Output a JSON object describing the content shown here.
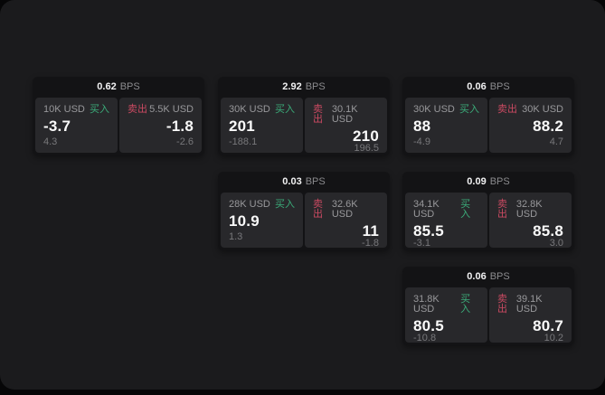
{
  "labels": {
    "bps": "BPS",
    "buy": "买入",
    "sell": "卖出"
  },
  "colors": {
    "buy": "#3bab79",
    "sell": "#cb4a62",
    "panel_bg": "#1b1b1d",
    "card_bg": "#131315",
    "cell_bg": "#28282b"
  },
  "cards": [
    {
      "bps": "0.62",
      "buy": {
        "amount": "10K USD",
        "value": "-3.7",
        "sub": "4.3"
      },
      "sell": {
        "amount": "5.5K USD",
        "value": "-1.8",
        "sub": "-2.6"
      }
    },
    {
      "bps": "2.92",
      "buy": {
        "amount": "30K USD",
        "value": "201",
        "sub": "-188.1"
      },
      "sell": {
        "amount": "30.1K USD",
        "value": "210",
        "sub": "196.5"
      }
    },
    {
      "bps": "0.06",
      "buy": {
        "amount": "30K USD",
        "value": "88",
        "sub": "-4.9"
      },
      "sell": {
        "amount": "30K USD",
        "value": "88.2",
        "sub": "4.7"
      }
    },
    {
      "bps": "0.03",
      "buy": {
        "amount": "28K USD",
        "value": "10.9",
        "sub": "1.3"
      },
      "sell": {
        "amount": "32.6K USD",
        "value": "11",
        "sub": "-1.8"
      }
    },
    {
      "bps": "0.09",
      "buy": {
        "amount": "34.1K USD",
        "value": "85.5",
        "sub": "-3.1"
      },
      "sell": {
        "amount": "32.8K USD",
        "value": "85.8",
        "sub": "3.0"
      }
    },
    {
      "bps": "0.06",
      "buy": {
        "amount": "31.8K USD",
        "value": "80.5",
        "sub": "-10.8"
      },
      "sell": {
        "amount": "39.1K USD",
        "value": "80.7",
        "sub": "10.2"
      }
    }
  ]
}
